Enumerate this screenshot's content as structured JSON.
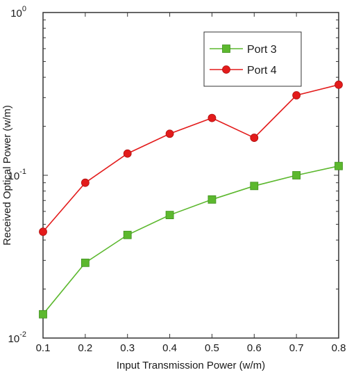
{
  "chart_data": {
    "type": "line",
    "title": "",
    "xlabel": "Input Transmission Power (w/m)",
    "ylabel": "Received Optical Power (w/m)",
    "yscale": "log",
    "xlim": [
      0.1,
      0.8
    ],
    "ylim": [
      0.01,
      1
    ],
    "grid": false,
    "legend_position": "top-right",
    "x_ticks": [
      "0.1",
      "0.2",
      "0.3",
      "0.4",
      "0.5",
      "0.6",
      "0.7",
      "0.8"
    ],
    "y_ticks": [
      {
        "value": 0.01,
        "base": "10",
        "exp": "-2"
      },
      {
        "value": 0.1,
        "base": "10",
        "exp": "-1"
      },
      {
        "value": 1,
        "base": "10",
        "exp": "0"
      }
    ],
    "x": [
      0.1,
      0.2,
      0.3,
      0.4,
      0.5,
      0.6,
      0.7,
      0.8
    ],
    "series": [
      {
        "name": "Port 3",
        "color": "#5cb82e",
        "marker": "square",
        "values": [
          0.014,
          0.029,
          0.043,
          0.057,
          0.071,
          0.086,
          0.1,
          0.114
        ]
      },
      {
        "name": "Port 4",
        "color": "#e31b1b",
        "marker": "circle",
        "values": [
          0.045,
          0.09,
          0.136,
          0.18,
          0.225,
          0.17,
          0.31,
          0.36
        ]
      }
    ]
  }
}
